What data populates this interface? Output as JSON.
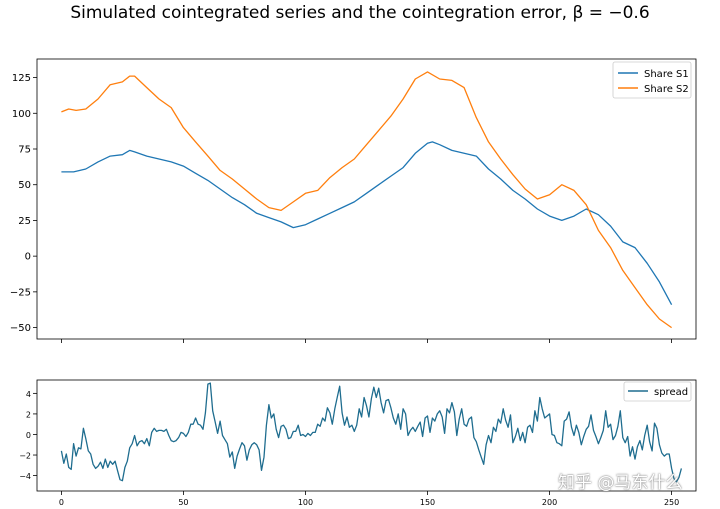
{
  "title": "Simulated cointegrated series and the cointegration error, β = −0.6",
  "watermark": "知乎 @马东什么",
  "colors": {
    "blue": "#1f77b4",
    "orange": "#ff7f0e",
    "spread": "#1f6d8f",
    "axis": "#000000"
  },
  "chart_data": [
    {
      "type": "line",
      "xlim": [
        -10,
        260
      ],
      "ylim": [
        -58,
        138
      ],
      "x_ticks": [
        0,
        50,
        100,
        150,
        200,
        250
      ],
      "show_x_tick_labels": false,
      "y_ticks": [
        -50,
        -25,
        0,
        25,
        50,
        75,
        100,
        125
      ],
      "y_tick_labels": [
        "−50",
        "−25",
        "0",
        "25",
        "50",
        "75",
        "100",
        "125"
      ],
      "legend_position": "top-right",
      "grid": false,
      "series": [
        {
          "name": "Share S1",
          "color": "#1f77b4",
          "points": [
            [
              0,
              59
            ],
            [
              5,
              59
            ],
            [
              10,
              61
            ],
            [
              15,
              66
            ],
            [
              20,
              70
            ],
            [
              25,
              71
            ],
            [
              28,
              74
            ],
            [
              30,
              73
            ],
            [
              35,
              70
            ],
            [
              40,
              68
            ],
            [
              45,
              66
            ],
            [
              50,
              63
            ],
            [
              55,
              58
            ],
            [
              60,
              53
            ],
            [
              65,
              47
            ],
            [
              70,
              41
            ],
            [
              75,
              36
            ],
            [
              80,
              30
            ],
            [
              85,
              27
            ],
            [
              90,
              24
            ],
            [
              95,
              20
            ],
            [
              100,
              22
            ],
            [
              105,
              26
            ],
            [
              110,
              30
            ],
            [
              115,
              34
            ],
            [
              120,
              38
            ],
            [
              125,
              44
            ],
            [
              130,
              50
            ],
            [
              135,
              56
            ],
            [
              140,
              62
            ],
            [
              145,
              72
            ],
            [
              150,
              79
            ],
            [
              152,
              80
            ],
            [
              155,
              78
            ],
            [
              160,
              74
            ],
            [
              165,
              72
            ],
            [
              170,
              70
            ],
            [
              175,
              61
            ],
            [
              180,
              54
            ],
            [
              185,
              46
            ],
            [
              190,
              40
            ],
            [
              195,
              33
            ],
            [
              200,
              28
            ],
            [
              205,
              25
            ],
            [
              210,
              28
            ],
            [
              215,
              33
            ],
            [
              220,
              29
            ],
            [
              225,
              21
            ],
            [
              230,
              10
            ],
            [
              235,
              6
            ],
            [
              240,
              -5
            ],
            [
              245,
              -18
            ],
            [
              250,
              -34
            ]
          ]
        },
        {
          "name": "Share S2",
          "color": "#ff7f0e",
          "points": [
            [
              0,
              101
            ],
            [
              3,
              103
            ],
            [
              6,
              102
            ],
            [
              10,
              103
            ],
            [
              15,
              110
            ],
            [
              20,
              120
            ],
            [
              25,
              122
            ],
            [
              28,
              126
            ],
            [
              30,
              126
            ],
            [
              35,
              118
            ],
            [
              40,
              110
            ],
            [
              45,
              104
            ],
            [
              50,
              90
            ],
            [
              55,
              80
            ],
            [
              60,
              70
            ],
            [
              65,
              60
            ],
            [
              70,
              54
            ],
            [
              75,
              47
            ],
            [
              80,
              40
            ],
            [
              85,
              34
            ],
            [
              90,
              32
            ],
            [
              95,
              38
            ],
            [
              100,
              44
            ],
            [
              105,
              46
            ],
            [
              110,
              55
            ],
            [
              115,
              62
            ],
            [
              120,
              68
            ],
            [
              125,
              78
            ],
            [
              130,
              88
            ],
            [
              135,
              98
            ],
            [
              140,
              110
            ],
            [
              145,
              124
            ],
            [
              150,
              129
            ],
            [
              155,
              124
            ],
            [
              160,
              123
            ],
            [
              165,
              118
            ],
            [
              170,
              97
            ],
            [
              175,
              80
            ],
            [
              180,
              68
            ],
            [
              185,
              57
            ],
            [
              190,
              47
            ],
            [
              195,
              40
            ],
            [
              200,
              43
            ],
            [
              205,
              50
            ],
            [
              210,
              46
            ],
            [
              215,
              36
            ],
            [
              220,
              18
            ],
            [
              225,
              6
            ],
            [
              230,
              -10
            ],
            [
              235,
              -22
            ],
            [
              240,
              -34
            ],
            [
              245,
              -44
            ],
            [
              250,
              -50
            ]
          ]
        }
      ]
    },
    {
      "type": "line",
      "xlim": [
        -10,
        260
      ],
      "ylim": [
        -5.5,
        5.3
      ],
      "x_ticks": [
        0,
        50,
        100,
        150,
        200,
        250
      ],
      "x_tick_labels": [
        "0",
        "50",
        "100",
        "150",
        "200",
        "250"
      ],
      "y_ticks": [
        -4,
        -2,
        0,
        2,
        4
      ],
      "y_tick_labels": [
        "−4",
        "−2",
        "0",
        "2",
        "4"
      ],
      "legend_position": "top-right",
      "grid": false,
      "series": [
        {
          "name": "spread",
          "color": "#1f6d8f",
          "values": [
            -1.6,
            -2.8,
            -1.9,
            -3.2,
            -3.4,
            -0.9,
            -2.1,
            -1.3,
            -1.4,
            0.6,
            -0.4,
            -1.6,
            -1.9,
            -2.9,
            -3.3,
            -3.1,
            -2.7,
            -3.3,
            -2.4,
            -3.2,
            -2.6,
            -2.9,
            -2.6,
            -3.5,
            -4.4,
            -4.5,
            -3.2,
            -2.6,
            -1.3,
            -0.9,
            -0.1,
            -1.1,
            -0.7,
            -0.6,
            -0.9,
            -0.4,
            -1.1,
            0.2,
            0.6,
            0.3,
            0.4,
            0.4,
            0.3,
            0.5,
            -0.1,
            -0.6,
            -0.7,
            -0.6,
            -0.3,
            0.2,
            0.1,
            -0.2,
            0.2,
            1.0,
            1.0,
            1.6,
            1.0,
            0.9,
            0.5,
            2.1,
            4.9,
            5.0,
            2.3,
            1.2,
            0.1,
            1.3,
            -0.1,
            -0.5,
            -0.9,
            -2.2,
            -1.7,
            -3.3,
            -2.1,
            -1.4,
            -0.8,
            -1.1,
            -2.5,
            -1.5,
            -1.0,
            -0.8,
            -1.0,
            -1.5,
            -3.5,
            -2.2,
            0.9,
            2.9,
            1.6,
            2.0,
            0.5,
            -0.3,
            0.8,
            0.9,
            0.5,
            -0.4,
            -0.3,
            0.3,
            0.3,
            0.9,
            -0.1,
            0.0,
            -0.2,
            0.1,
            -0.1,
            0.2,
            0.2,
            1.0,
            0.8,
            1.6,
            1.3,
            2.6,
            2.1,
            1.0,
            2.5,
            3.6,
            4.7,
            2.1,
            0.9,
            1.7,
            0.7,
            0.9,
            0.3,
            0.9,
            2.5,
            1.7,
            3.6,
            2.8,
            1.7,
            3.5,
            4.6,
            3.6,
            4.5,
            3.1,
            2.1,
            3.3,
            3.4,
            2.6,
            1.6,
            1.0,
            2.0,
            0.5,
            2.5,
            2.0,
            -0.1,
            0.4,
            0.7,
            0.3,
            0.8,
            1.2,
            -0.2,
            1.6,
            1.8,
            0.2,
            1.6,
            1.3,
            2.0,
            2.3,
            1.7,
            0.1,
            2.5,
            2.1,
            3.1,
            2.2,
            -0.1,
            1.5,
            2.5,
            1.0,
            0.8,
            1.5,
            1.7,
            -0.3,
            -0.7,
            -1.5,
            -2.2,
            -2.9,
            -1.0,
            -0.1,
            -0.8,
            0.7,
            0.3,
            1.5,
            1.1,
            2.5,
            1.4,
            0.7,
            1.9,
            -0.8,
            -0.2,
            0.6,
            -0.6,
            0.2,
            -0.8,
            0.7,
            0.9,
            0.2,
            2.3,
            1.3,
            3.6,
            2.5,
            1.6,
            1.8,
            2.0,
            0.0,
            -0.1,
            -0.8,
            -0.9,
            -1.1,
            1.3,
            1.5,
            2.2,
            0.7,
            -0.1,
            0.9,
            0.2,
            -1.0,
            -0.2,
            0.5,
            0.8,
            1.9,
            0.4,
            -0.2,
            -0.9,
            -0.3,
            0.4,
            2.3,
            0.7,
            1.0,
            -0.5,
            -0.1,
            0.8,
            2.3,
            -0.3,
            -0.8,
            -0.2,
            -2.1,
            -1.2,
            -2.4,
            -1.2,
            -0.6,
            -1.5,
            -0.1,
            0.9,
            -0.7,
            -1.6,
            1.1,
            0.6,
            -1.0,
            -1.8,
            -2.1,
            -1.9,
            -1.9,
            -3.3,
            -4.3,
            -4.6,
            -4.2,
            -3.3
          ]
        }
      ]
    }
  ]
}
